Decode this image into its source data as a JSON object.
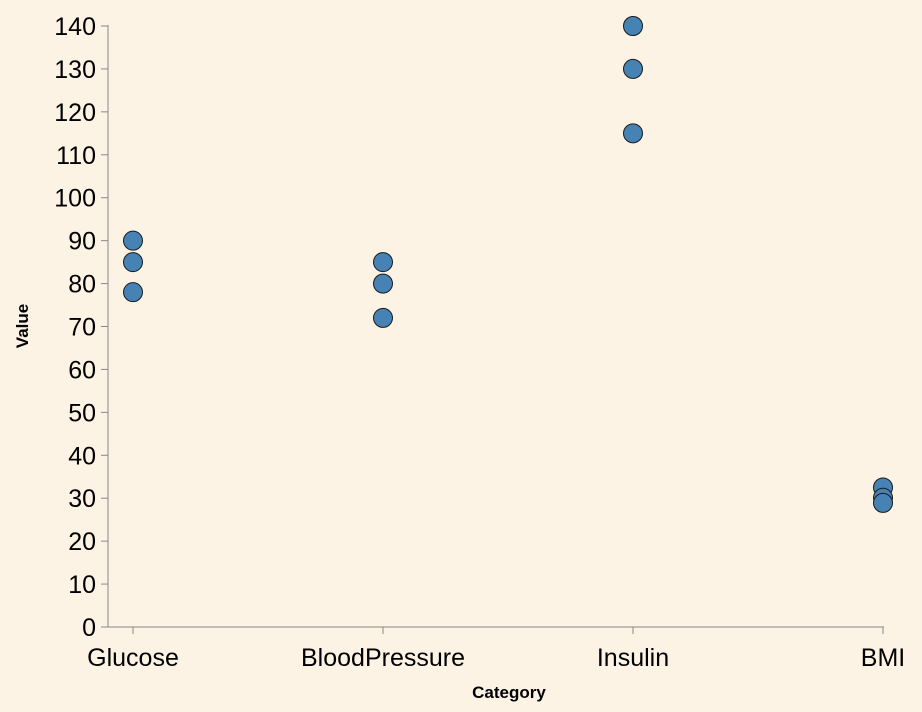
{
  "chart_data": {
    "type": "scatter",
    "title": "",
    "xlabel": "Category",
    "ylabel": "Value",
    "categories": [
      "Glucose",
      "BloodPressure",
      "Insulin",
      "BMI"
    ],
    "ylim": [
      0,
      140
    ],
    "yticks": [
      0,
      10,
      20,
      30,
      40,
      50,
      60,
      70,
      80,
      90,
      100,
      110,
      120,
      130,
      140
    ],
    "grid": false,
    "point_color": "#4682b4",
    "points": [
      {
        "category": "Glucose",
        "value": 90
      },
      {
        "category": "Glucose",
        "value": 85
      },
      {
        "category": "Glucose",
        "value": 78
      },
      {
        "category": "BloodPressure",
        "value": 85
      },
      {
        "category": "BloodPressure",
        "value": 80
      },
      {
        "category": "BloodPressure",
        "value": 72
      },
      {
        "category": "Insulin",
        "value": 140
      },
      {
        "category": "Insulin",
        "value": 130
      },
      {
        "category": "Insulin",
        "value": 115
      },
      {
        "category": "BMI",
        "value": 32.5
      },
      {
        "category": "BMI",
        "value": 30.1
      },
      {
        "category": "BMI",
        "value": 28.9
      }
    ]
  }
}
